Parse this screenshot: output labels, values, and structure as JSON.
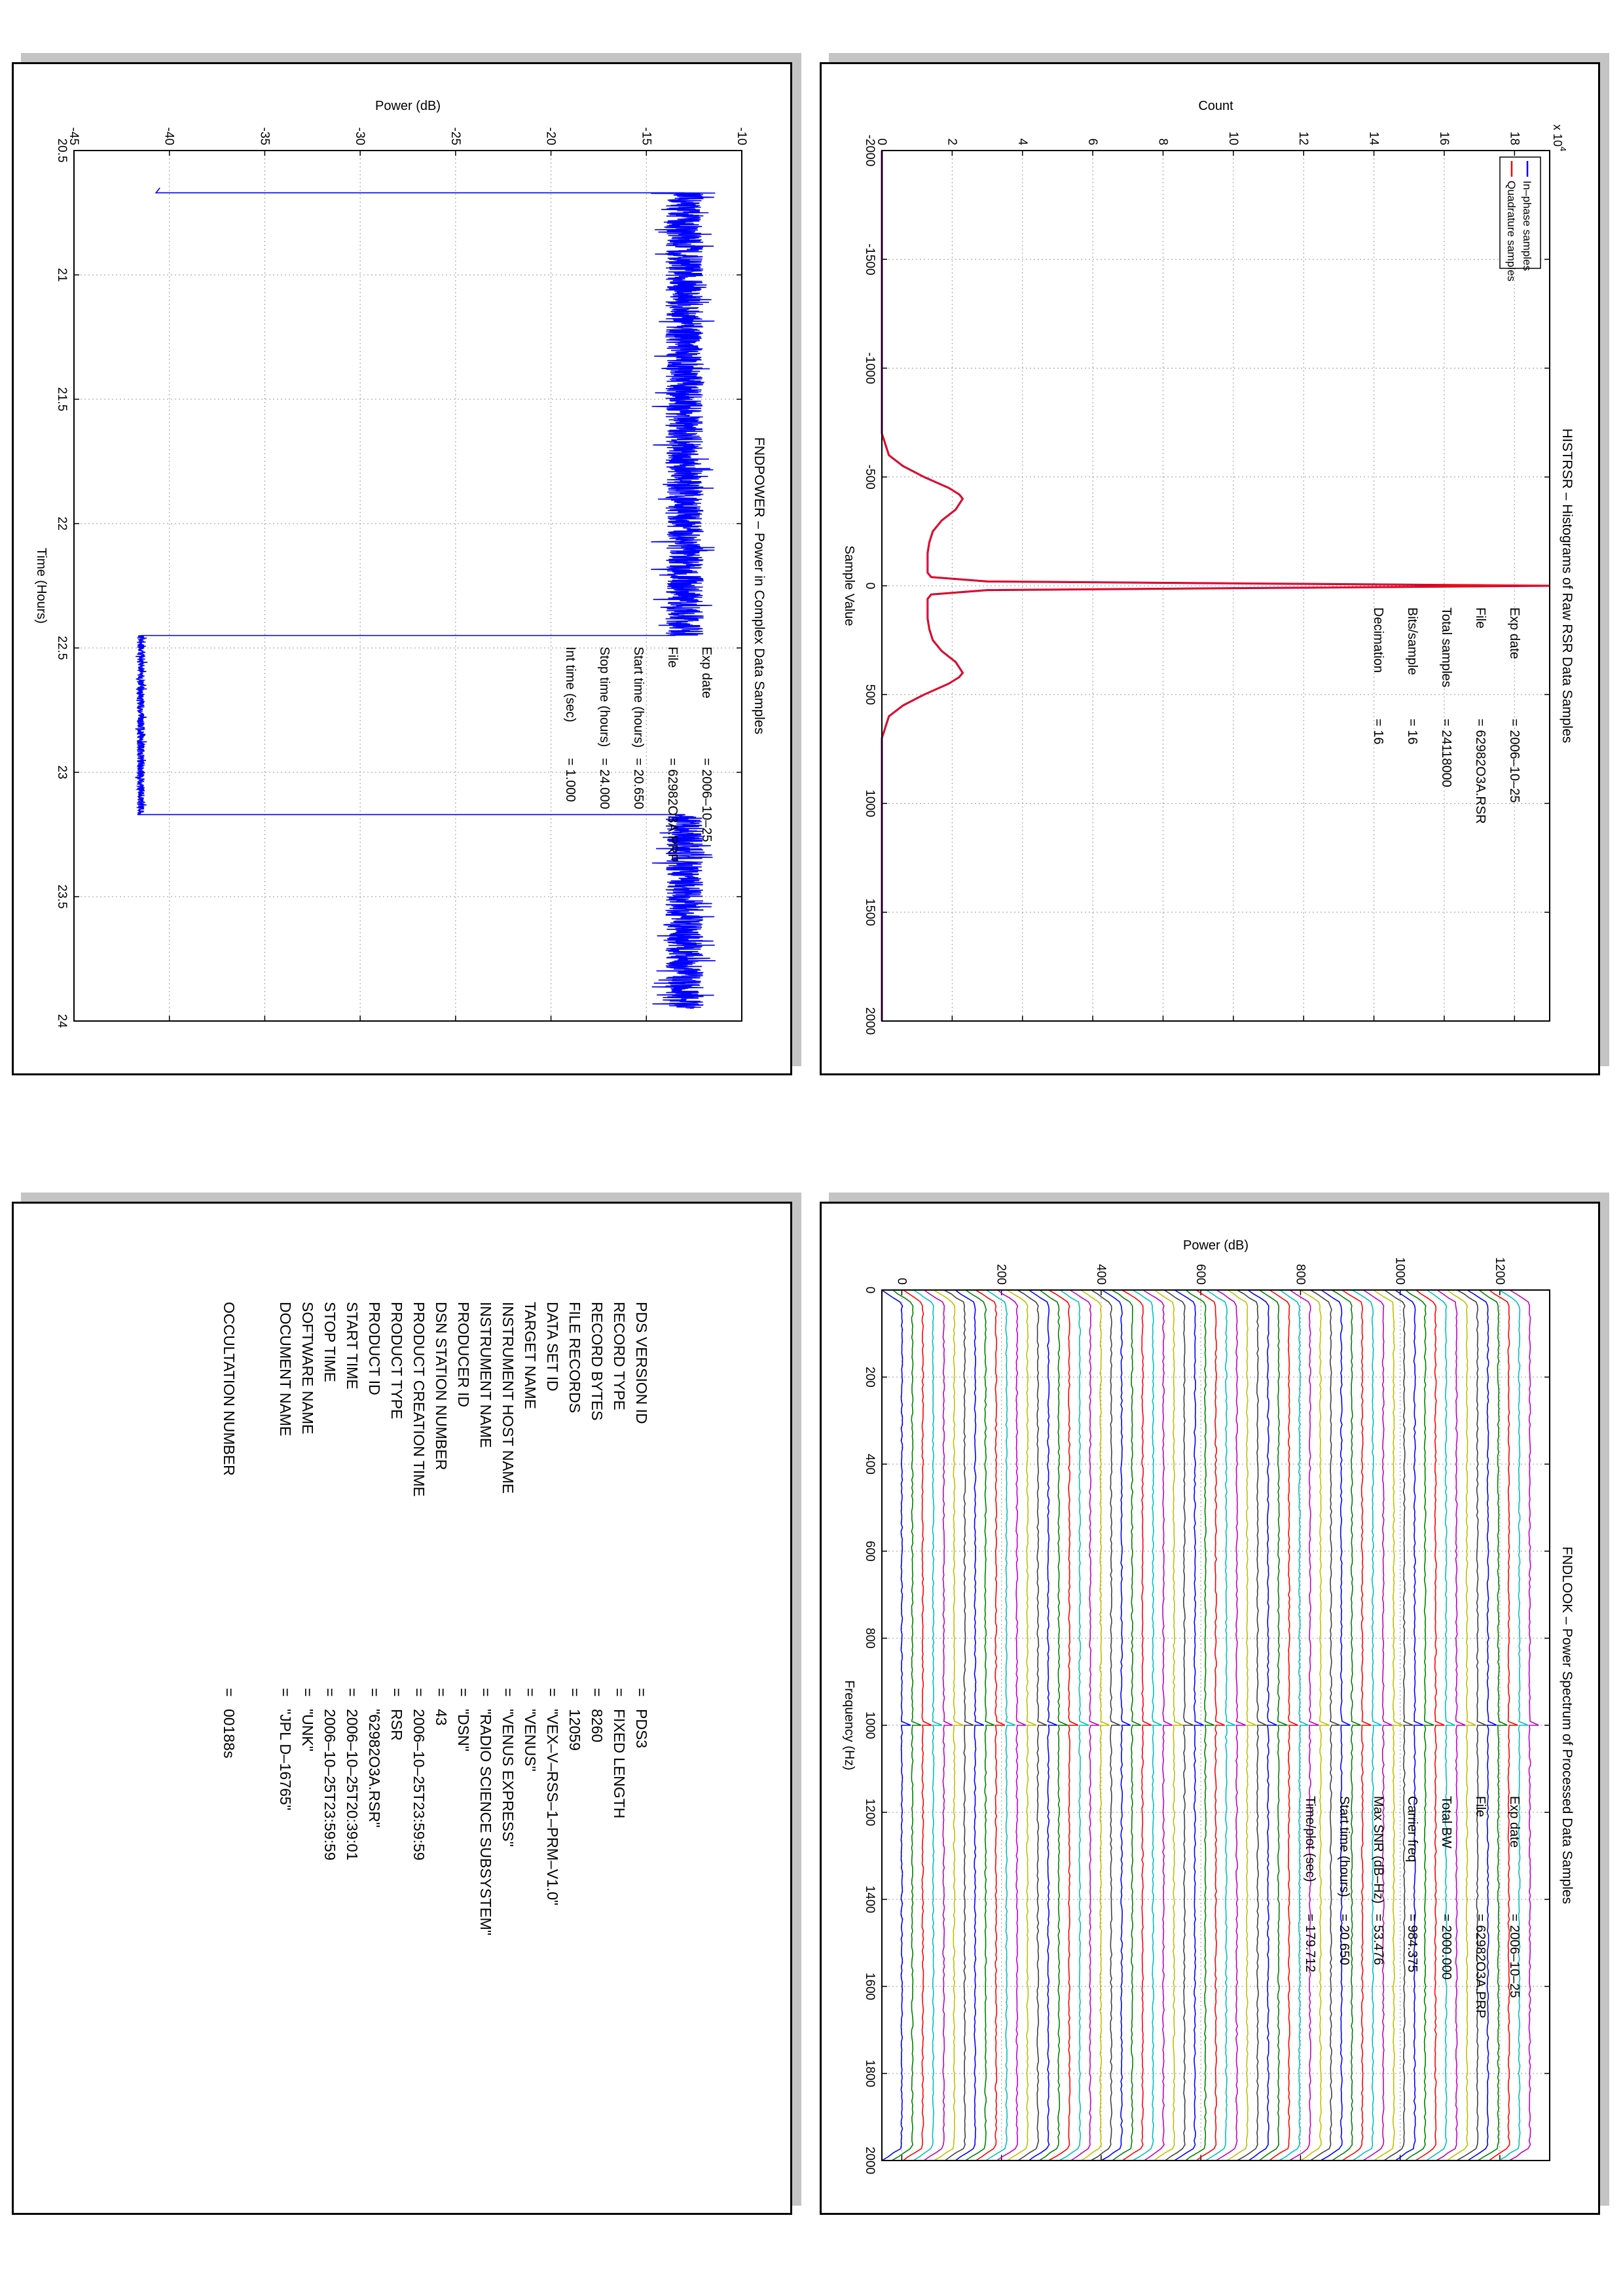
{
  "panels": {
    "histrsr": {
      "chart_data": {
        "type": "line",
        "title": "HISTRSR – Histograms of Raw RSR Data Samples",
        "xlabel": "Sample Value",
        "ylabel": "Count",
        "y_multiplier": "x 10",
        "y_multiplier_exp": "4",
        "xlim": [
          -2000,
          2000
        ],
        "ylim": [
          0,
          19
        ],
        "xticks": [
          -2000,
          -1500,
          -1000,
          -500,
          0,
          500,
          1000,
          1500,
          2000
        ],
        "yticks": [
          0,
          2,
          4,
          6,
          8,
          10,
          12,
          14,
          16,
          18
        ],
        "grid": true,
        "legend": "top-left",
        "series": [
          {
            "name": "In–phase samples",
            "color": "#0000ff",
            "x": [
              -2000,
              -700,
              -600,
              -550,
              -500,
              -450,
              -420,
              -400,
              -350,
              -300,
              -250,
              -200,
              -150,
              -100,
              -60,
              -40,
              -20,
              0,
              20,
              40,
              60,
              100,
              150,
              200,
              250,
              300,
              350,
              400,
              420,
              450,
              500,
              550,
              600,
              700,
              2000
            ],
            "y": [
              0,
              0,
              0.2,
              0.6,
              1.2,
              1.9,
              2.2,
              2.3,
              2.1,
              1.7,
              1.45,
              1.35,
              1.3,
              1.3,
              1.3,
              1.4,
              3,
              19,
              3,
              1.4,
              1.3,
              1.3,
              1.3,
              1.35,
              1.45,
              1.7,
              2.1,
              2.3,
              2.2,
              1.9,
              1.2,
              0.6,
              0.2,
              0,
              0
            ]
          },
          {
            "name": "Quadrature samples",
            "color": "#ff0000",
            "x": [
              -2000,
              -700,
              -600,
              -550,
              -500,
              -450,
              -420,
              -400,
              -350,
              -300,
              -250,
              -200,
              -150,
              -100,
              -60,
              -40,
              -20,
              0,
              20,
              40,
              60,
              100,
              150,
              200,
              250,
              300,
              350,
              400,
              420,
              450,
              500,
              550,
              600,
              700,
              2000
            ],
            "y": [
              0,
              0,
              0.2,
              0.6,
              1.2,
              1.9,
              2.2,
              2.3,
              2.1,
              1.7,
              1.45,
              1.35,
              1.3,
              1.3,
              1.3,
              1.4,
              3,
              19,
              3,
              1.4,
              1.3,
              1.3,
              1.3,
              1.35,
              1.45,
              1.7,
              2.1,
              2.3,
              2.2,
              1.9,
              1.2,
              0.6,
              0.2,
              0,
              0
            ]
          }
        ],
        "annotations": [
          {
            "label": "Exp date",
            "value": "2006–10–25"
          },
          {
            "label": "File",
            "value": "62982O3A.RSR"
          },
          {
            "label": "Total samples",
            "value": "24118000"
          },
          {
            "label": "Bits/sample",
            "value": "16"
          },
          {
            "label": "Decimation",
            "value": "16"
          }
        ]
      }
    },
    "fndpower": {
      "chart_data": {
        "type": "line",
        "title": "FNDPOWER – Power in Complex Data Samples",
        "xlabel": "Time (Hours)",
        "ylabel": "Power (dB)",
        "xlim": [
          20.5,
          24
        ],
        "ylim": [
          -45,
          -10
        ],
        "xticks": [
          20.5,
          21,
          21.5,
          22,
          22.5,
          23,
          23.5,
          24
        ],
        "yticks": [
          -45,
          -40,
          -35,
          -30,
          -25,
          -20,
          -15,
          -10
        ],
        "grid": true,
        "series": [
          {
            "name": "",
            "color": "#0000ff",
            "segments": [
              {
                "x": [
                  20.65,
                  20.67
                ],
                "y": [
                  -40.5,
                  -40.7
                ]
              },
              {
                "x": [
                  20.67,
                  22.45
                ],
                "y_mean": -13,
                "noise": 1.0
              },
              {
                "x": [
                  22.45,
                  23.17
                ],
                "y_mean": -41.5,
                "noise": 0.2
              },
              {
                "x": [
                  23.17,
                  23.95
                ],
                "y_mean": -13,
                "noise": 1.0
              }
            ]
          }
        ],
        "annotations": [
          {
            "label": "Exp date",
            "value": "2006–10–25"
          },
          {
            "label": "File",
            "value": "62982O3A.PRP"
          },
          {
            "label": "Start time (hours)",
            "value": "20.650"
          },
          {
            "label": "Stop time (hours)",
            "value": "24.000"
          },
          {
            "label": "Int time (sec)",
            "value": "1.000"
          }
        ]
      }
    },
    "fndlook": {
      "chart_data": {
        "type": "line",
        "title": "FNDLOOK – Power Spectrum of Processed Data Samples",
        "xlabel": "Frequency (Hz)",
        "ylabel": "Power (dB)",
        "xlim": [
          0,
          2000
        ],
        "ylim": [
          -40,
          1300
        ],
        "xticks": [
          0,
          200,
          400,
          600,
          800,
          1000,
          1200,
          1400,
          1600,
          1800,
          2000
        ],
        "yticks": [
          0,
          200,
          400,
          600,
          800,
          1000,
          1200
        ],
        "grid": true,
        "stacked_spectra": {
          "count": 61,
          "offset_db": 21,
          "carrier_hz": 1000,
          "edge_low_hz": 30,
          "edge_high_hz": 1970
        },
        "colors": [
          "#0000ff",
          "#008000",
          "#ff0000",
          "#00bfbf",
          "#bf00bf",
          "#bfbf00",
          "#404040"
        ],
        "annotations": [
          {
            "label": "Exp date",
            "value": "2006–10–25"
          },
          {
            "label": "File",
            "value": "62982O3A.PRP"
          },
          {
            "label": "Total BW",
            "value": "2000.000"
          },
          {
            "label": "Carrier freq",
            "value": "984.375"
          },
          {
            "label": "Max SNR (dB–Hz)",
            "value": "53.476"
          },
          {
            "label": "Start time (hours)",
            "value": "20.650"
          },
          {
            "label": "Time/plot (sec)",
            "value": "179.712"
          }
        ]
      }
    },
    "labels": {
      "rows": [
        {
          "key": "PDS VERSION ID",
          "value": "PDS3"
        },
        {
          "key": "RECORD TYPE",
          "value": "FIXED LENGTH"
        },
        {
          "key": "RECORD BYTES",
          "value": "8260"
        },
        {
          "key": "FILE RECORDS",
          "value": "12059"
        },
        {
          "key": "DATA SET ID",
          "value": "\"VEX–V–RSS–1–PRM–V1.0\""
        },
        {
          "key": "TARGET NAME",
          "value": "\"VENUS\""
        },
        {
          "key": "INSTRUMENT HOST NAME",
          "value": "\"VENUS EXPRESS\""
        },
        {
          "key": "INSTRUMENT NAME",
          "value": "\"RADIO SCIENCE SUBSYSTEM\""
        },
        {
          "key": "PRODUCER ID",
          "value": "\"DSN\""
        },
        {
          "key": "DSN STATION NUMBER",
          "value": "43"
        },
        {
          "key": "PRODUCT CREATION TIME",
          "value": "2006–10–25T23:59:59"
        },
        {
          "key": "PRODUCT TYPE",
          "value": "RSR"
        },
        {
          "key": "PRODUCT ID",
          "value": "\"62982O3A.RSR\""
        },
        {
          "key": "START TIME",
          "value": "2006–10–25T20:39:01"
        },
        {
          "key": "STOP TIME",
          "value": "2006–10–25T23:59:59"
        },
        {
          "key": "SOFTWARE NAME",
          "value": "\"UNK\""
        },
        {
          "key": "DOCUMENT NAME",
          "value": "\"JPL D–16765\""
        },
        {
          "key": "OCCULTATION NUMBER",
          "value": "00188s",
          "gap_before": true
        }
      ],
      "equals": "="
    }
  }
}
